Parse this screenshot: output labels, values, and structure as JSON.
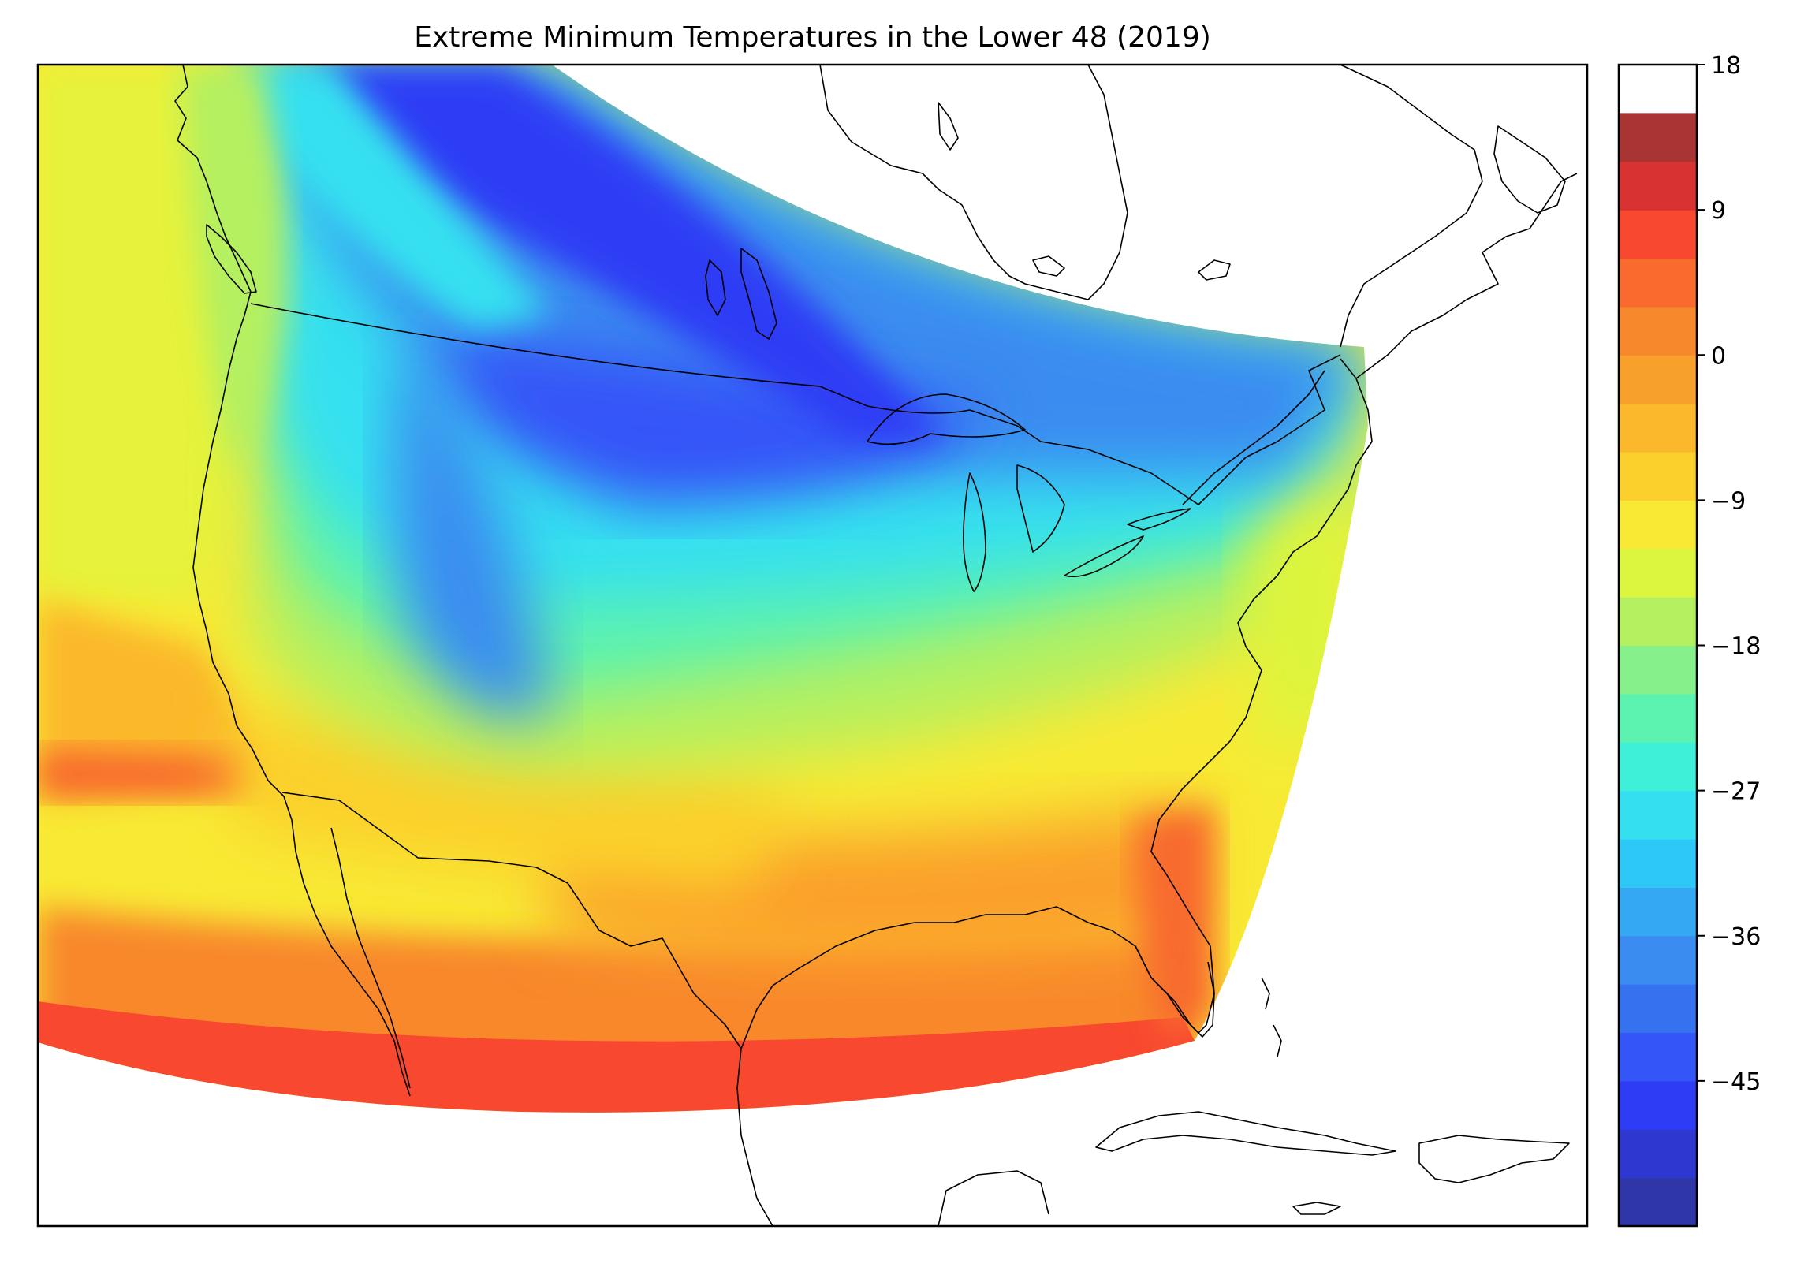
{
  "title": "Extreme Minimum Temperatures in the Lower 48 (2019)",
  "colorbar": {
    "min": -54,
    "max": 18,
    "step": 3,
    "tick_values": [
      18,
      9,
      0,
      -9,
      -18,
      -27,
      -36,
      -45
    ],
    "tick_labels": [
      "18",
      "9",
      "0",
      "−9",
      "−18",
      "−27",
      "−36",
      "−45"
    ],
    "colors": [
      "#2f37a8",
      "#2e38d0",
      "#2e3cf5",
      "#3455f8",
      "#3672f0",
      "#3a8cf0",
      "#34a8f2",
      "#2ec8f8",
      "#34e0f0",
      "#3ef0d8",
      "#5cf2b0",
      "#86f08a",
      "#b4f060",
      "#dcf53e",
      "#f8ea34",
      "#fbd02c",
      "#fbb82c",
      "#f8a02c",
      "#f8882c",
      "#f86a2e",
      "#f84830",
      "#d83232",
      "#a83434"
    ]
  },
  "map": {
    "projection": "lambert-conformal",
    "variable": "extreme minimum temperature",
    "region": "contiguous United States",
    "year": 2019
  }
}
